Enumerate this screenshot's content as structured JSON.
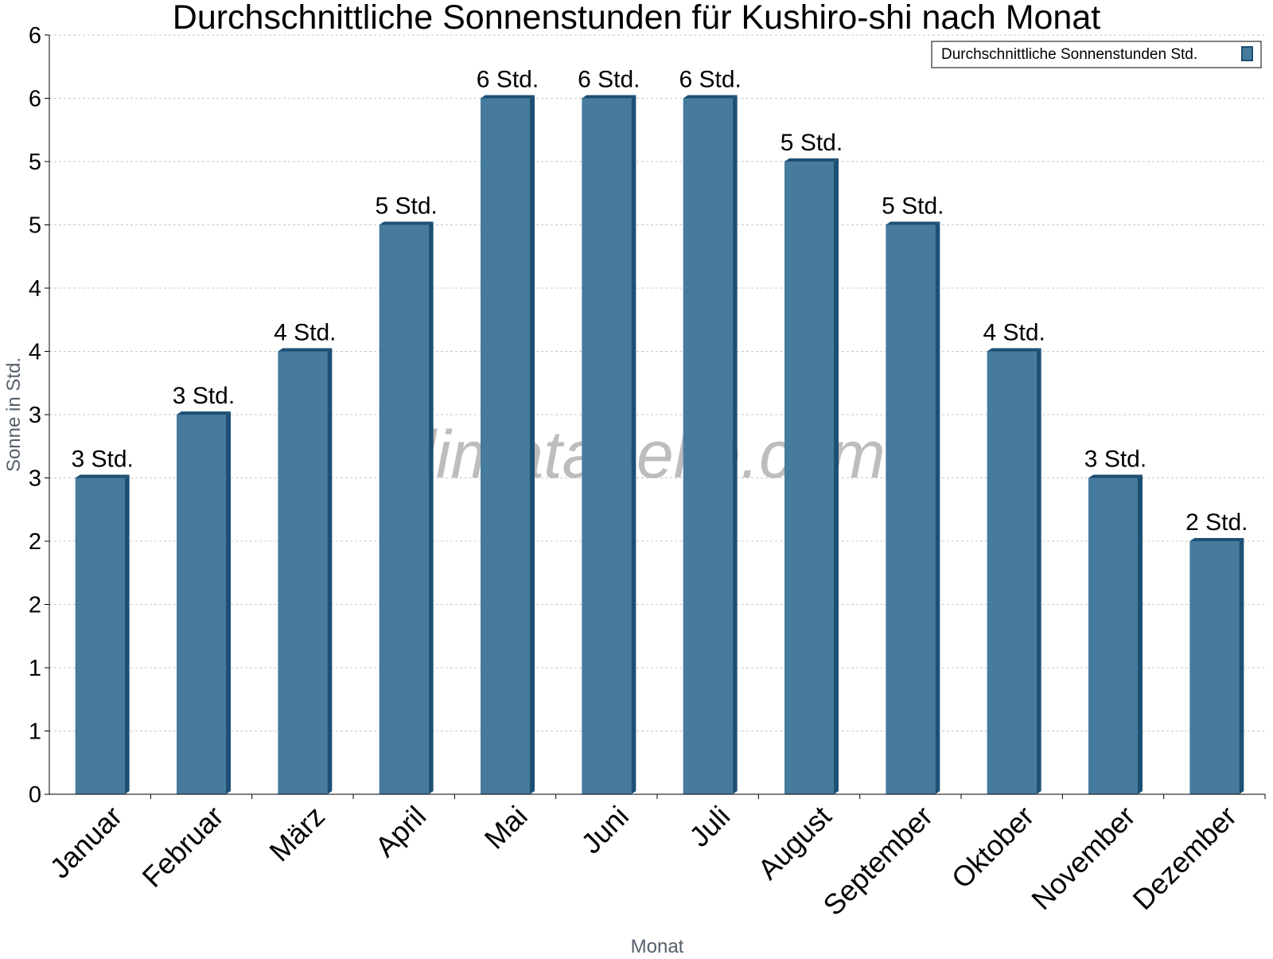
{
  "chart_data": {
    "type": "bar",
    "title": "Durchschnittliche Sonnenstunden für Kushiro-shi nach Monat",
    "xlabel": "Monat",
    "ylabel": "Sonne in Std.",
    "categories": [
      "Januar",
      "Februar",
      "März",
      "April",
      "Mai",
      "Juni",
      "Juli",
      "August",
      "September",
      "Oktober",
      "November",
      "Dezember"
    ],
    "series": [
      {
        "name": "Durchschnittliche Sonnenstunden Std.",
        "values": [
          2.5,
          3.0,
          3.5,
          4.5,
          5.5,
          5.5,
          5.5,
          5.0,
          4.5,
          3.5,
          2.5,
          2.0
        ],
        "labels": [
          "3 Std.",
          "3 Std.",
          "4 Std.",
          "5 Std.",
          "6 Std.",
          "6 Std.",
          "6 Std.",
          "5 Std.",
          "5 Std.",
          "4 Std.",
          "3 Std.",
          "2 Std."
        ]
      }
    ],
    "ylim": [
      0,
      6
    ],
    "yticks": [
      0,
      0.5,
      1,
      1.5,
      2,
      2.5,
      3,
      3.5,
      4,
      4.5,
      5,
      5.5,
      6
    ],
    "ytick_labels": [
      "0",
      "1",
      "1",
      "2",
      "2",
      "3",
      "3",
      "4",
      "4",
      "5",
      "5",
      "6",
      "6"
    ],
    "grid": true,
    "legend_position": "top-right",
    "colors": {
      "bar": "#467b9e",
      "bar_side": "#1e4f74",
      "bar_top": "#1e4f74"
    }
  },
  "watermark": "klimatabelle.com"
}
